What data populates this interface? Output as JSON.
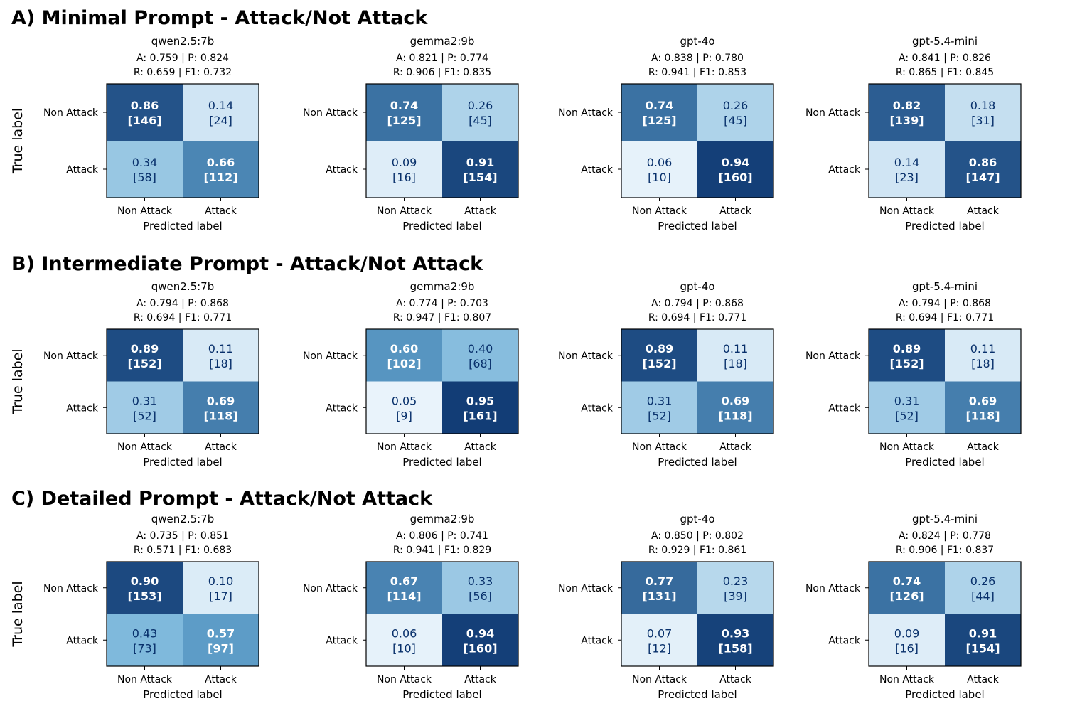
{
  "colors": {
    "scale_low": "#f7fbff",
    "scale_mid": "#6baed6",
    "scale_high": "#08306b",
    "light_text": "#ffffff",
    "dark_text": "#08306b",
    "frame": "#000000"
  },
  "chart_data": [
    {
      "section": "A) Minimal Prompt - Attack/Not Attack",
      "panels": [
        {
          "type": "heatmap",
          "title": "qwen2.5:7b",
          "metrics_line1": "A: 0.759 | P: 0.824",
          "metrics_line2": "R: 0.659 | F1: 0.732",
          "x_categories": [
            "Non Attack",
            "Attack"
          ],
          "y_categories": [
            "Non Attack",
            "Attack"
          ],
          "xlabel": "Predicted label",
          "ylabel": "True label",
          "values": [
            [
              0.86,
              0.14
            ],
            [
              0.34,
              0.66
            ]
          ],
          "counts": [
            [
              146,
              24
            ],
            [
              58,
              112
            ]
          ]
        },
        {
          "type": "heatmap",
          "title": "gemma2:9b",
          "metrics_line1": "A: 0.821 | P: 0.774",
          "metrics_line2": "R: 0.906 | F1: 0.835",
          "x_categories": [
            "Non Attack",
            "Attack"
          ],
          "y_categories": [
            "Non Attack",
            "Attack"
          ],
          "xlabel": "Predicted label",
          "ylabel": "",
          "values": [
            [
              0.74,
              0.26
            ],
            [
              0.09,
              0.91
            ]
          ],
          "counts": [
            [
              125,
              45
            ],
            [
              16,
              154
            ]
          ]
        },
        {
          "type": "heatmap",
          "title": "gpt-4o",
          "metrics_line1": "A: 0.838 | P: 0.780",
          "metrics_line2": "R: 0.941 | F1: 0.853",
          "x_categories": [
            "Non Attack",
            "Attack"
          ],
          "y_categories": [
            "Non Attack",
            "Attack"
          ],
          "xlabel": "Predicted label",
          "ylabel": "",
          "values": [
            [
              0.74,
              0.26
            ],
            [
              0.06,
              0.94
            ]
          ],
          "counts": [
            [
              125,
              45
            ],
            [
              10,
              160
            ]
          ]
        },
        {
          "type": "heatmap",
          "title": "gpt-5.4-mini",
          "metrics_line1": "A: 0.841 | P: 0.826",
          "metrics_line2": "R: 0.865 | F1: 0.845",
          "x_categories": [
            "Non Attack",
            "Attack"
          ],
          "y_categories": [
            "Non Attack",
            "Attack"
          ],
          "xlabel": "Predicted label",
          "ylabel": "",
          "values": [
            [
              0.82,
              0.18
            ],
            [
              0.14,
              0.86
            ]
          ],
          "counts": [
            [
              139,
              31
            ],
            [
              23,
              147
            ]
          ]
        }
      ]
    },
    {
      "section": "B) Intermediate Prompt - Attack/Not Attack",
      "panels": [
        {
          "type": "heatmap",
          "title": "qwen2.5:7b",
          "metrics_line1": "A: 0.794 | P: 0.868",
          "metrics_line2": "R: 0.694 | F1: 0.771",
          "x_categories": [
            "Non Attack",
            "Attack"
          ],
          "y_categories": [
            "Non Attack",
            "Attack"
          ],
          "xlabel": "Predicted label",
          "ylabel": "True label",
          "values": [
            [
              0.89,
              0.11
            ],
            [
              0.31,
              0.69
            ]
          ],
          "counts": [
            [
              152,
              18
            ],
            [
              52,
              118
            ]
          ]
        },
        {
          "type": "heatmap",
          "title": "gemma2:9b",
          "metrics_line1": "A: 0.774 | P: 0.703",
          "metrics_line2": "R: 0.947 | F1: 0.807",
          "x_categories": [
            "Non Attack",
            "Attack"
          ],
          "y_categories": [
            "Non Attack",
            "Attack"
          ],
          "xlabel": "Predicted label",
          "ylabel": "",
          "values": [
            [
              0.6,
              0.4
            ],
            [
              0.05,
              0.95
            ]
          ],
          "counts": [
            [
              102,
              68
            ],
            [
              9,
              161
            ]
          ]
        },
        {
          "type": "heatmap",
          "title": "gpt-4o",
          "metrics_line1": "A: 0.794 | P: 0.868",
          "metrics_line2": "R: 0.694 | F1: 0.771",
          "x_categories": [
            "Non Attack",
            "Attack"
          ],
          "y_categories": [
            "Non Attack",
            "Attack"
          ],
          "xlabel": "Predicted label",
          "ylabel": "",
          "values": [
            [
              0.89,
              0.11
            ],
            [
              0.31,
              0.69
            ]
          ],
          "counts": [
            [
              152,
              18
            ],
            [
              52,
              118
            ]
          ]
        },
        {
          "type": "heatmap",
          "title": "gpt-5.4-mini",
          "metrics_line1": "A: 0.794 | P: 0.868",
          "metrics_line2": "R: 0.694 | F1: 0.771",
          "x_categories": [
            "Non Attack",
            "Attack"
          ],
          "y_categories": [
            "Non Attack",
            "Attack"
          ],
          "xlabel": "Predicted label",
          "ylabel": "",
          "values": [
            [
              0.89,
              0.11
            ],
            [
              0.31,
              0.69
            ]
          ],
          "counts": [
            [
              152,
              18
            ],
            [
              52,
              118
            ]
          ]
        }
      ]
    },
    {
      "section": "C) Detailed Prompt - Attack/Not Attack",
      "panels": [
        {
          "type": "heatmap",
          "title": "qwen2.5:7b",
          "metrics_line1": "A: 0.735 | P: 0.851",
          "metrics_line2": "R: 0.571 | F1: 0.683",
          "x_categories": [
            "Non Attack",
            "Attack"
          ],
          "y_categories": [
            "Non Attack",
            "Attack"
          ],
          "xlabel": "Predicted label",
          "ylabel": "True label",
          "values": [
            [
              0.9,
              0.1
            ],
            [
              0.43,
              0.57
            ]
          ],
          "counts": [
            [
              153,
              17
            ],
            [
              73,
              97
            ]
          ]
        },
        {
          "type": "heatmap",
          "title": "gemma2:9b",
          "metrics_line1": "A: 0.806 | P: 0.741",
          "metrics_line2": "R: 0.941 | F1: 0.829",
          "x_categories": [
            "Non Attack",
            "Attack"
          ],
          "y_categories": [
            "Non Attack",
            "Attack"
          ],
          "xlabel": "Predicted label",
          "ylabel": "",
          "values": [
            [
              0.67,
              0.33
            ],
            [
              0.06,
              0.94
            ]
          ],
          "counts": [
            [
              114,
              56
            ],
            [
              10,
              160
            ]
          ]
        },
        {
          "type": "heatmap",
          "title": "gpt-4o",
          "metrics_line1": "A: 0.850 | P: 0.802",
          "metrics_line2": "R: 0.929 | F1: 0.861",
          "x_categories": [
            "Non Attack",
            "Attack"
          ],
          "y_categories": [
            "Non Attack",
            "Attack"
          ],
          "xlabel": "Predicted label",
          "ylabel": "",
          "values": [
            [
              0.77,
              0.23
            ],
            [
              0.07,
              0.93
            ]
          ],
          "counts": [
            [
              131,
              39
            ],
            [
              12,
              158
            ]
          ]
        },
        {
          "type": "heatmap",
          "title": "gpt-5.4-mini",
          "metrics_line1": "A: 0.824 | P: 0.778",
          "metrics_line2": "R: 0.906 | F1: 0.837",
          "x_categories": [
            "Non Attack",
            "Attack"
          ],
          "y_categories": [
            "Non Attack",
            "Attack"
          ],
          "xlabel": "Predicted label",
          "ylabel": "",
          "values": [
            [
              0.74,
              0.26
            ],
            [
              0.09,
              0.91
            ]
          ],
          "counts": [
            [
              126,
              44
            ],
            [
              16,
              154
            ]
          ]
        }
      ]
    }
  ]
}
